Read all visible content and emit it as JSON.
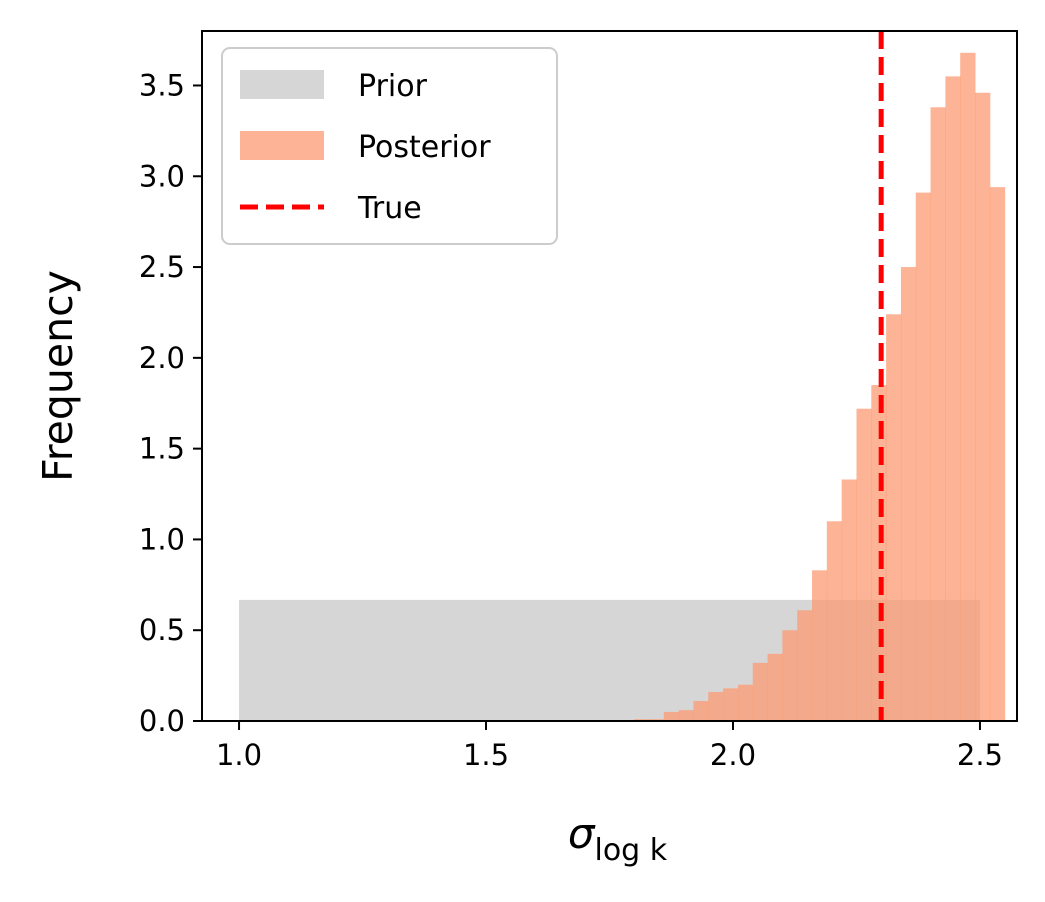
{
  "chart_data": {
    "type": "bar",
    "xlabel": "σ",
    "xlabel_sub": "log k",
    "ylabel": "Frequency",
    "xlim": [
      0.925,
      2.575
    ],
    "ylim": [
      0,
      3.8
    ],
    "xticks": [
      1.0,
      1.5,
      2.0,
      2.5
    ],
    "xtick_labels": [
      "1.0",
      "1.5",
      "2.0",
      "2.5"
    ],
    "yticks": [
      0.0,
      0.5,
      1.0,
      1.5,
      2.0,
      2.5,
      3.0,
      3.5
    ],
    "ytick_labels": [
      "0.0",
      "0.5",
      "1.0",
      "1.5",
      "2.0",
      "2.5",
      "3.0",
      "3.5"
    ],
    "grid": false,
    "legend_placement": "upper-left",
    "colors": {
      "prior": "#d6d6d6",
      "posterior": "#fc9b73",
      "true_line": "#ff0000",
      "axis": "#000000"
    },
    "series": [
      {
        "name": "Prior",
        "kind": "histogram",
        "bins": [
          [
            1.0,
            2.5,
            0.667
          ]
        ]
      },
      {
        "name": "Posterior",
        "kind": "histogram",
        "bin_start": 1.8,
        "bin_width": 0.03,
        "values": [
          0.01,
          0.01,
          0.05,
          0.06,
          0.11,
          0.16,
          0.18,
          0.2,
          0.32,
          0.37,
          0.5,
          0.61,
          0.83,
          1.1,
          1.33,
          1.72,
          1.85,
          2.24,
          2.5,
          2.91,
          3.38,
          3.55,
          3.68,
          3.46,
          2.94
        ]
      }
    ],
    "reference_lines": [
      {
        "name": "True",
        "axis": "x",
        "value": 2.3,
        "style": "dashed"
      }
    ]
  }
}
